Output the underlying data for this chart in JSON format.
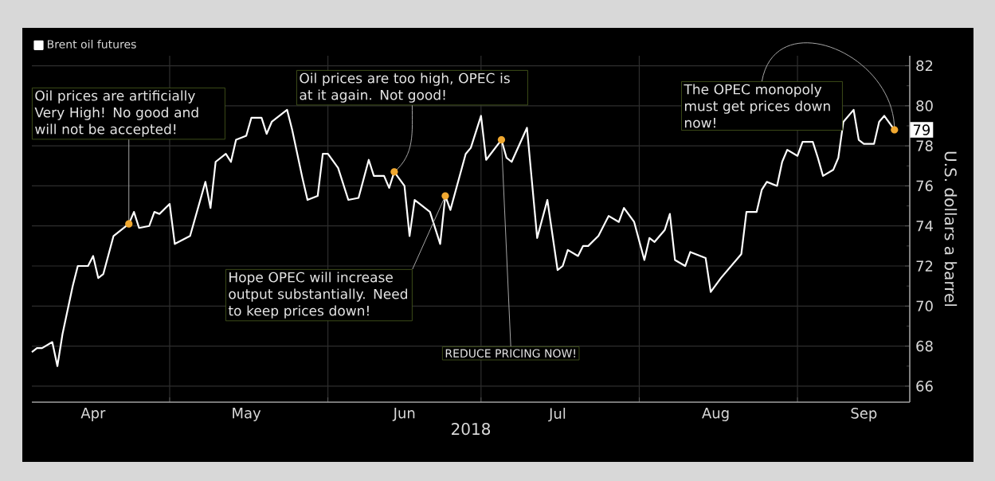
{
  "chart_data": {
    "type": "line",
    "legend": "top left",
    "xlabel": "2018",
    "ylabel": "U.S. dollars a barrel",
    "grid": true,
    "xlim": [
      "2018-04-04",
      "2018-09-23"
    ],
    "ylim": [
      65.2,
      82.5
    ],
    "xticks": [
      {
        "value": "2018-04-16",
        "label": "Apr"
      },
      {
        "value": "2018-05-01",
        "label": null
      },
      {
        "value": "2018-05-16",
        "label": "May"
      },
      {
        "value": "2018-06-01",
        "label": null
      },
      {
        "value": "2018-06-16",
        "label": "Jun"
      },
      {
        "value": "2018-07-01",
        "label": null
      },
      {
        "value": "2018-07-16",
        "label": "Jul"
      },
      {
        "value": "2018-08-01",
        "label": null
      },
      {
        "value": "2018-08-16",
        "label": "Aug"
      },
      {
        "value": "2018-09-01",
        "label": null
      },
      {
        "value": "2018-09-14",
        "label": "Sep"
      }
    ],
    "yticks": [
      66,
      {
        "value": 67,
        "label": null
      },
      68,
      {
        "value": 69,
        "label": null
      },
      70,
      {
        "value": 71,
        "label": null
      },
      72,
      {
        "value": 73,
        "label": null
      },
      74,
      {
        "value": 75,
        "label": null
      },
      76,
      {
        "value": 77,
        "label": null
      },
      78,
      {
        "value": 79,
        "label": null
      },
      80,
      {
        "value": 81,
        "label": null
      },
      82
    ],
    "series": [
      {
        "name": "Brent oil futures",
        "color": "#ffffff",
        "x": [
          "2018-04-04",
          "2018-04-05",
          "2018-04-06",
          "2018-04-08",
          "2018-04-09",
          "2018-04-10",
          "2018-04-12",
          "2018-04-13",
          "2018-04-15",
          "2018-04-16",
          "2018-04-17",
          "2018-04-18",
          "2018-04-20",
          "2018-04-23",
          "2018-04-24",
          "2018-04-25",
          "2018-04-27",
          "2018-04-28",
          "2018-04-29",
          "2018-05-01",
          "2018-05-02",
          "2018-05-05",
          "2018-05-08",
          "2018-05-09",
          "2018-05-10",
          "2018-05-12",
          "2018-05-13",
          "2018-05-14",
          "2018-05-16",
          "2018-05-17",
          "2018-05-19",
          "2018-05-20",
          "2018-05-21",
          "2018-05-23",
          "2018-05-24",
          "2018-05-25",
          "2018-05-27",
          "2018-05-28",
          "2018-05-30",
          "2018-05-31",
          "2018-06-01",
          "2018-06-03",
          "2018-06-05",
          "2018-06-07",
          "2018-06-09",
          "2018-06-10",
          "2018-06-12",
          "2018-06-13",
          "2018-06-14",
          "2018-06-16",
          "2018-06-17",
          "2018-06-18",
          "2018-06-21",
          "2018-06-23",
          "2018-06-24",
          "2018-06-25",
          "2018-06-28",
          "2018-06-29",
          "2018-07-01",
          "2018-07-02",
          "2018-07-05",
          "2018-07-06",
          "2018-07-07",
          "2018-07-10",
          "2018-07-12",
          "2018-07-14",
          "2018-07-16",
          "2018-07-17",
          "2018-07-18",
          "2018-07-20",
          "2018-07-21",
          "2018-07-22",
          "2018-07-24",
          "2018-07-26",
          "2018-07-28",
          "2018-07-29",
          "2018-07-31",
          "2018-08-02",
          "2018-08-03",
          "2018-08-04",
          "2018-08-06",
          "2018-08-07",
          "2018-08-08",
          "2018-08-10",
          "2018-08-11",
          "2018-08-13",
          "2018-08-14",
          "2018-08-15",
          "2018-08-17",
          "2018-08-19",
          "2018-08-21",
          "2018-08-22",
          "2018-08-24",
          "2018-08-25",
          "2018-08-26",
          "2018-08-28",
          "2018-08-29",
          "2018-08-30",
          "2018-09-01",
          "2018-09-02",
          "2018-09-04",
          "2018-09-05",
          "2018-09-06",
          "2018-09-08",
          "2018-09-09",
          "2018-09-10",
          "2018-09-12",
          "2018-09-13",
          "2018-09-14",
          "2018-09-16",
          "2018-09-17",
          "2018-09-18",
          "2018-09-20"
        ],
        "values": [
          67.7,
          67.9,
          67.9,
          68.2,
          67.0,
          68.6,
          71.0,
          72.0,
          72.0,
          72.5,
          71.4,
          71.6,
          73.5,
          74.1,
          74.7,
          73.9,
          74.0,
          74.7,
          74.6,
          75.1,
          73.1,
          73.5,
          76.2,
          74.9,
          77.2,
          77.6,
          77.2,
          78.3,
          78.5,
          79.4,
          79.4,
          78.6,
          79.2,
          79.6,
          79.8,
          78.8,
          76.4,
          75.3,
          75.5,
          77.6,
          77.6,
          76.9,
          75.3,
          75.4,
          77.3,
          76.5,
          76.5,
          75.9,
          76.7,
          76.0,
          73.5,
          75.3,
          74.7,
          73.1,
          75.5,
          74.8,
          77.6,
          77.9,
          79.5,
          77.3,
          78.3,
          77.4,
          77.2,
          78.9,
          73.4,
          75.3,
          71.8,
          72.0,
          72.8,
          72.5,
          73.0,
          73.0,
          73.5,
          74.5,
          74.2,
          74.9,
          74.2,
          72.3,
          73.4,
          73.2,
          73.8,
          74.6,
          72.3,
          72.0,
          72.7,
          72.5,
          72.4,
          70.7,
          71.4,
          72.0,
          72.6,
          74.7,
          74.7,
          75.8,
          76.2,
          76.0,
          77.2,
          77.8,
          77.5,
          78.2,
          78.2,
          77.4,
          76.5,
          76.8,
          77.4,
          79.2,
          79.8,
          78.3,
          78.1,
          78.1,
          79.2,
          79.5,
          78.8
        ]
      }
    ],
    "annotations": [
      {
        "text": "Oil prices are artificially Very High! No good and will not be accepted!",
        "x": "2018-04-23",
        "y": 74.1
      },
      {
        "text": "Oil prices are too high, OPEC is at it again. Not good!",
        "x": "2018-06-14",
        "y": 76.7
      },
      {
        "text": "Hope OPEC will increase output substantially. Need to keep prices down!",
        "x": "2018-06-24",
        "y": 75.5
      },
      {
        "text": "REDUCE PRICING NOW!",
        "x": "2018-07-05",
        "y": 78.3
      },
      {
        "text": "The OPEC monopoly must get prices down now!",
        "x": "2018-09-20",
        "y": 78.8
      },
      {
        "text": "79",
        "x": "2018-09-20",
        "y": 78.8
      }
    ]
  }
}
